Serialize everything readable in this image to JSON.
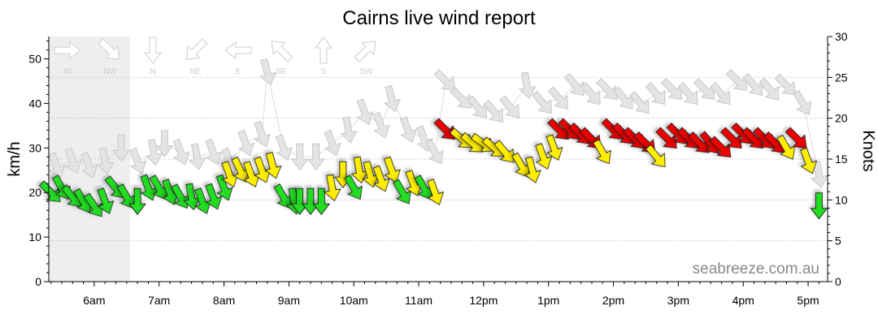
{
  "chart_data": {
    "type": "scatter",
    "title": "Cairns live wind report",
    "ylabel_left": "km/h",
    "ylabel_right": "Knots",
    "watermark": "seabreeze.com.au",
    "y_left_range": [
      0,
      55
    ],
    "y_left_ticks": [
      "0",
      "10",
      "20",
      "30",
      "40",
      "50"
    ],
    "y_right_range": [
      0,
      30
    ],
    "y_right_ticks": [
      "0",
      "5",
      "10",
      "15",
      "20",
      "25",
      "30"
    ],
    "x_ticks": [
      "6am",
      "7am",
      "8am",
      "9am",
      "10am",
      "11am",
      "12pm",
      "1pm",
      "2pm",
      "3pm",
      "4pm",
      "5pm"
    ],
    "direction_legend": [
      "W",
      "NW",
      "N",
      "NE",
      "E",
      "SE",
      "S",
      "SW"
    ],
    "colors": {
      "green": "#22dd22",
      "yellow": "#ffee00",
      "red": "#ee0000",
      "gust": "#e4e4e4",
      "night_shade": "#eeeeee",
      "gridline": "#bbbbbb"
    },
    "series": [
      {
        "name": "Wind",
        "points": [
          [
            "5:20am",
            20,
            135,
            "green"
          ],
          [
            "5:30am",
            21,
            150,
            "green"
          ],
          [
            "5:40am",
            19,
            140,
            "green"
          ],
          [
            "5:50am",
            18,
            150,
            "green"
          ],
          [
            "6:00am",
            17,
            145,
            "green"
          ],
          [
            "6:10am",
            18,
            160,
            "green"
          ],
          [
            "6:20am",
            21,
            140,
            "green"
          ],
          [
            "6:30am",
            19,
            150,
            "green"
          ],
          [
            "6:40am",
            18,
            180,
            "green"
          ],
          [
            "6:50am",
            21,
            160,
            "green"
          ],
          [
            "7:00am",
            21,
            150,
            "green"
          ],
          [
            "7:10am",
            20,
            160,
            "green"
          ],
          [
            "7:20am",
            19,
            150,
            "green"
          ],
          [
            "7:30am",
            19,
            170,
            "green"
          ],
          [
            "7:40am",
            18,
            160,
            "green"
          ],
          [
            "7:50am",
            19,
            160,
            "green"
          ],
          [
            "8:00am",
            21,
            160,
            "green"
          ],
          [
            "8:05am",
            24,
            160,
            "yellow"
          ],
          [
            "8:15am",
            25,
            155,
            "yellow"
          ],
          [
            "8:25am",
            24,
            160,
            "yellow"
          ],
          [
            "8:35am",
            25,
            160,
            "yellow"
          ],
          [
            "8:45am",
            26,
            165,
            "yellow"
          ],
          [
            "8:55am",
            19,
            150,
            "green"
          ],
          [
            "9:05am",
            18,
            170,
            "green"
          ],
          [
            "9:10am",
            18,
            180,
            "green"
          ],
          [
            "9:20am",
            18,
            180,
            "green"
          ],
          [
            "9:30am",
            18,
            180,
            "green"
          ],
          [
            "9:40am",
            21,
            170,
            "yellow"
          ],
          [
            "9:50am",
            24,
            180,
            "yellow"
          ],
          [
            "10:00am",
            21,
            150,
            "green"
          ],
          [
            "10:05am",
            25,
            170,
            "yellow"
          ],
          [
            "10:15am",
            24,
            165,
            "yellow"
          ],
          [
            "10:25am",
            23,
            160,
            "yellow"
          ],
          [
            "10:35am",
            25,
            160,
            "yellow"
          ],
          [
            "10:45am",
            20,
            150,
            "green"
          ],
          [
            "10:55am",
            22,
            160,
            "yellow"
          ],
          [
            "11:05am",
            21,
            150,
            "green"
          ],
          [
            "11:15am",
            20,
            160,
            "yellow"
          ],
          [
            "11:25am",
            34,
            135,
            "red"
          ],
          [
            "11:40am",
            32,
            130,
            "yellow"
          ],
          [
            "11:50am",
            31,
            130,
            "yellow"
          ],
          [
            "12:00pm",
            31,
            125,
            "yellow"
          ],
          [
            "12:10pm",
            30,
            130,
            "yellow"
          ],
          [
            "12:20pm",
            29,
            140,
            "yellow"
          ],
          [
            "12:35pm",
            26,
            150,
            "yellow"
          ],
          [
            "12:45pm",
            25,
            165,
            "yellow"
          ],
          [
            "12:55pm",
            28,
            160,
            "yellow"
          ],
          [
            "1:05pm",
            30,
            160,
            "yellow"
          ],
          [
            "1:10pm",
            34,
            135,
            "red"
          ],
          [
            "1:20pm",
            34,
            135,
            "red"
          ],
          [
            "1:30pm",
            33,
            135,
            "red"
          ],
          [
            "1:40pm",
            32,
            135,
            "red"
          ],
          [
            "1:50pm",
            29,
            150,
            "yellow"
          ],
          [
            "2:00pm",
            34,
            135,
            "red"
          ],
          [
            "2:10pm",
            33,
            135,
            "red"
          ],
          [
            "2:20pm",
            32,
            135,
            "red"
          ],
          [
            "2:30pm",
            31,
            135,
            "red"
          ],
          [
            "2:40pm",
            28,
            140,
            "yellow"
          ],
          [
            "2:50pm",
            32,
            135,
            "red"
          ],
          [
            "3:00pm",
            33,
            135,
            "red"
          ],
          [
            "3:10pm",
            32,
            135,
            "red"
          ],
          [
            "3:20pm",
            31,
            135,
            "red"
          ],
          [
            "3:30pm",
            31,
            140,
            "red"
          ],
          [
            "3:40pm",
            30,
            135,
            "red"
          ],
          [
            "3:50pm",
            32,
            135,
            "red"
          ],
          [
            "4:00pm",
            33,
            135,
            "red"
          ],
          [
            "4:10pm",
            32,
            135,
            "red"
          ],
          [
            "4:20pm",
            32,
            135,
            "red"
          ],
          [
            "4:30pm",
            31,
            135,
            "red"
          ],
          [
            "4:40pm",
            30,
            150,
            "yellow"
          ],
          [
            "4:50pm",
            32,
            135,
            "red"
          ],
          [
            "5:00pm",
            27,
            160,
            "yellow"
          ],
          [
            "5:10pm",
            17,
            180,
            "green"
          ]
        ]
      },
      {
        "name": "Gust",
        "points": [
          [
            "5:25am",
            26,
            160
          ],
          [
            "5:40am",
            27,
            160
          ],
          [
            "5:55am",
            26,
            160
          ],
          [
            "6:10am",
            27,
            170
          ],
          [
            "6:25am",
            30,
            180
          ],
          [
            "6:40am",
            27,
            160
          ],
          [
            "6:55am",
            29,
            170
          ],
          [
            "7:05am",
            31,
            180
          ],
          [
            "7:20am",
            29,
            160
          ],
          [
            "7:35am",
            28,
            170
          ],
          [
            "7:50am",
            29,
            160
          ],
          [
            "8:05am",
            27,
            160
          ],
          [
            "8:20am",
            31,
            160
          ],
          [
            "8:35am",
            33,
            160
          ],
          [
            "8:40am",
            47,
            165
          ],
          [
            "8:55am",
            30,
            160
          ],
          [
            "9:10am",
            28,
            180
          ],
          [
            "9:25am",
            28,
            180
          ],
          [
            "9:40am",
            31,
            160
          ],
          [
            "9:55am",
            34,
            170
          ],
          [
            "10:10am",
            38,
            160
          ],
          [
            "10:25am",
            35,
            160
          ],
          [
            "10:35am",
            41,
            165
          ],
          [
            "10:50am",
            34,
            160
          ],
          [
            "11:05am",
            32,
            160
          ],
          [
            "11:15am",
            29,
            150
          ],
          [
            "11:25am",
            45,
            135
          ],
          [
            "11:40am",
            41,
            135
          ],
          [
            "11:55am",
            39,
            140
          ],
          [
            "12:10pm",
            38,
            140
          ],
          [
            "12:25pm",
            39,
            140
          ],
          [
            "12:40pm",
            44,
            170
          ],
          [
            "12:55pm",
            40,
            140
          ],
          [
            "1:10pm",
            41,
            140
          ],
          [
            "1:25pm",
            44,
            140
          ],
          [
            "1:40pm",
            42,
            140
          ],
          [
            "1:55pm",
            43,
            135
          ],
          [
            "2:10pm",
            41,
            140
          ],
          [
            "2:25pm",
            40,
            140
          ],
          [
            "2:40pm",
            42,
            140
          ],
          [
            "2:55pm",
            43,
            135
          ],
          [
            "3:10pm",
            42,
            140
          ],
          [
            "3:25pm",
            43,
            135
          ],
          [
            "3:40pm",
            42,
            140
          ],
          [
            "3:55pm",
            45,
            135
          ],
          [
            "4:10pm",
            44,
            140
          ],
          [
            "4:25pm",
            43,
            140
          ],
          [
            "4:40pm",
            44,
            135
          ],
          [
            "4:55pm",
            40,
            150
          ],
          [
            "5:10pm",
            24,
            170
          ]
        ]
      }
    ]
  }
}
